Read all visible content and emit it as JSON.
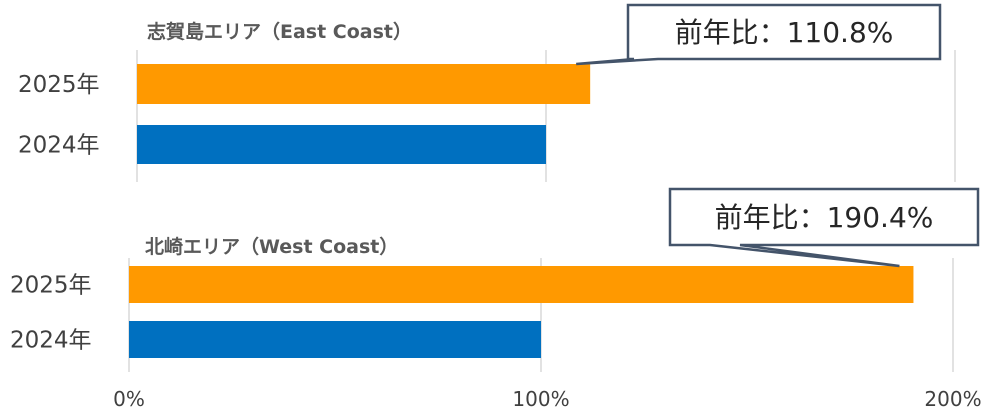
{
  "chart_data": [
    {
      "type": "bar",
      "orientation": "horizontal",
      "title": "志賀島エリア（East Coast）",
      "categories": [
        "2025年",
        "2024年"
      ],
      "series": [
        {
          "values": [
            110.8,
            100.0
          ]
        }
      ],
      "bar_colors": [
        "#ff9900",
        "#0070c0"
      ],
      "xlim": [
        0,
        200
      ],
      "xticks": [
        "0%",
        "100%",
        "200%"
      ],
      "grid": true,
      "callout": {
        "text": "前年比：110.8%",
        "target_category": "2025年"
      }
    },
    {
      "type": "bar",
      "orientation": "horizontal",
      "title": "北崎エリア（West Coast）",
      "categories": [
        "2025年",
        "2024年"
      ],
      "series": [
        {
          "values": [
            190.4,
            100.0
          ]
        }
      ],
      "bar_colors": [
        "#ff9900",
        "#0070c0"
      ],
      "xlim": [
        0,
        200
      ],
      "xticks": [
        "0%",
        "100%",
        "200%"
      ],
      "grid": true,
      "callout": {
        "text": "前年比：190.4%",
        "target_category": "2025年"
      }
    }
  ],
  "colors": {
    "bar_2025": "#ff9900",
    "bar_2024": "#0070c0",
    "grid": "#d9d9d9",
    "callout_border": "#44546a"
  }
}
